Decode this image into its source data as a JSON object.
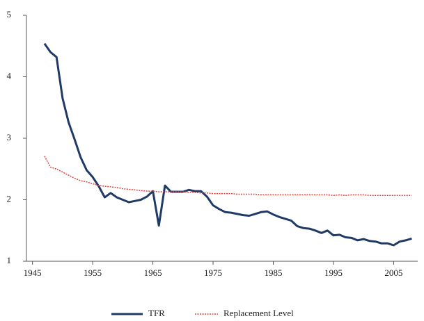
{
  "chart_data": {
    "type": "line",
    "x": [
      1947,
      1948,
      1949,
      1950,
      1951,
      1952,
      1953,
      1954,
      1955,
      1956,
      1957,
      1958,
      1959,
      1960,
      1961,
      1962,
      1963,
      1964,
      1965,
      1966,
      1967,
      1968,
      1969,
      1970,
      1971,
      1972,
      1973,
      1974,
      1975,
      1976,
      1977,
      1978,
      1979,
      1980,
      1981,
      1982,
      1983,
      1984,
      1985,
      1986,
      1987,
      1988,
      1989,
      1990,
      1991,
      1992,
      1993,
      1994,
      1995,
      1996,
      1997,
      1998,
      1999,
      2000,
      2001,
      2002,
      2003,
      2004,
      2005,
      2006,
      2007,
      2008
    ],
    "series": [
      {
        "name": "TFR",
        "color": "#1f3a66",
        "dash": false,
        "values": [
          4.54,
          4.4,
          4.32,
          3.65,
          3.26,
          2.98,
          2.69,
          2.48,
          2.37,
          2.22,
          2.04,
          2.11,
          2.04,
          2.0,
          1.96,
          1.98,
          2.0,
          2.05,
          2.14,
          1.58,
          2.23,
          2.13,
          2.13,
          2.13,
          2.16,
          2.14,
          2.14,
          2.05,
          1.91,
          1.85,
          1.8,
          1.79,
          1.77,
          1.75,
          1.74,
          1.77,
          1.8,
          1.81,
          1.76,
          1.72,
          1.69,
          1.66,
          1.57,
          1.54,
          1.53,
          1.5,
          1.46,
          1.5,
          1.42,
          1.43,
          1.39,
          1.38,
          1.34,
          1.36,
          1.33,
          1.32,
          1.29,
          1.29,
          1.26,
          1.32,
          1.34,
          1.37
        ]
      },
      {
        "name": "Replacement Level",
        "color": "#e8403a",
        "dash": true,
        "values": [
          2.71,
          2.53,
          2.5,
          2.45,
          2.4,
          2.35,
          2.31,
          2.29,
          2.26,
          2.23,
          2.22,
          2.21,
          2.2,
          2.18,
          2.17,
          2.16,
          2.15,
          2.14,
          2.14,
          2.13,
          2.13,
          2.13,
          2.13,
          2.13,
          2.12,
          2.12,
          2.11,
          2.11,
          2.1,
          2.1,
          2.1,
          2.1,
          2.09,
          2.09,
          2.09,
          2.09,
          2.08,
          2.08,
          2.08,
          2.08,
          2.08,
          2.08,
          2.08,
          2.08,
          2.08,
          2.08,
          2.08,
          2.08,
          2.07,
          2.08,
          2.07,
          2.08,
          2.08,
          2.08,
          2.07,
          2.07,
          2.07,
          2.07,
          2.07,
          2.07,
          2.07,
          2.07
        ]
      }
    ],
    "xlim": [
      1944,
      2009
    ],
    "xticks": [
      1945,
      1955,
      1965,
      1975,
      1985,
      1995,
      2005
    ],
    "ylim": [
      1,
      5
    ],
    "yticks": [
      1,
      2,
      3,
      4,
      5
    ],
    "grid": false,
    "legend": "bottom"
  }
}
